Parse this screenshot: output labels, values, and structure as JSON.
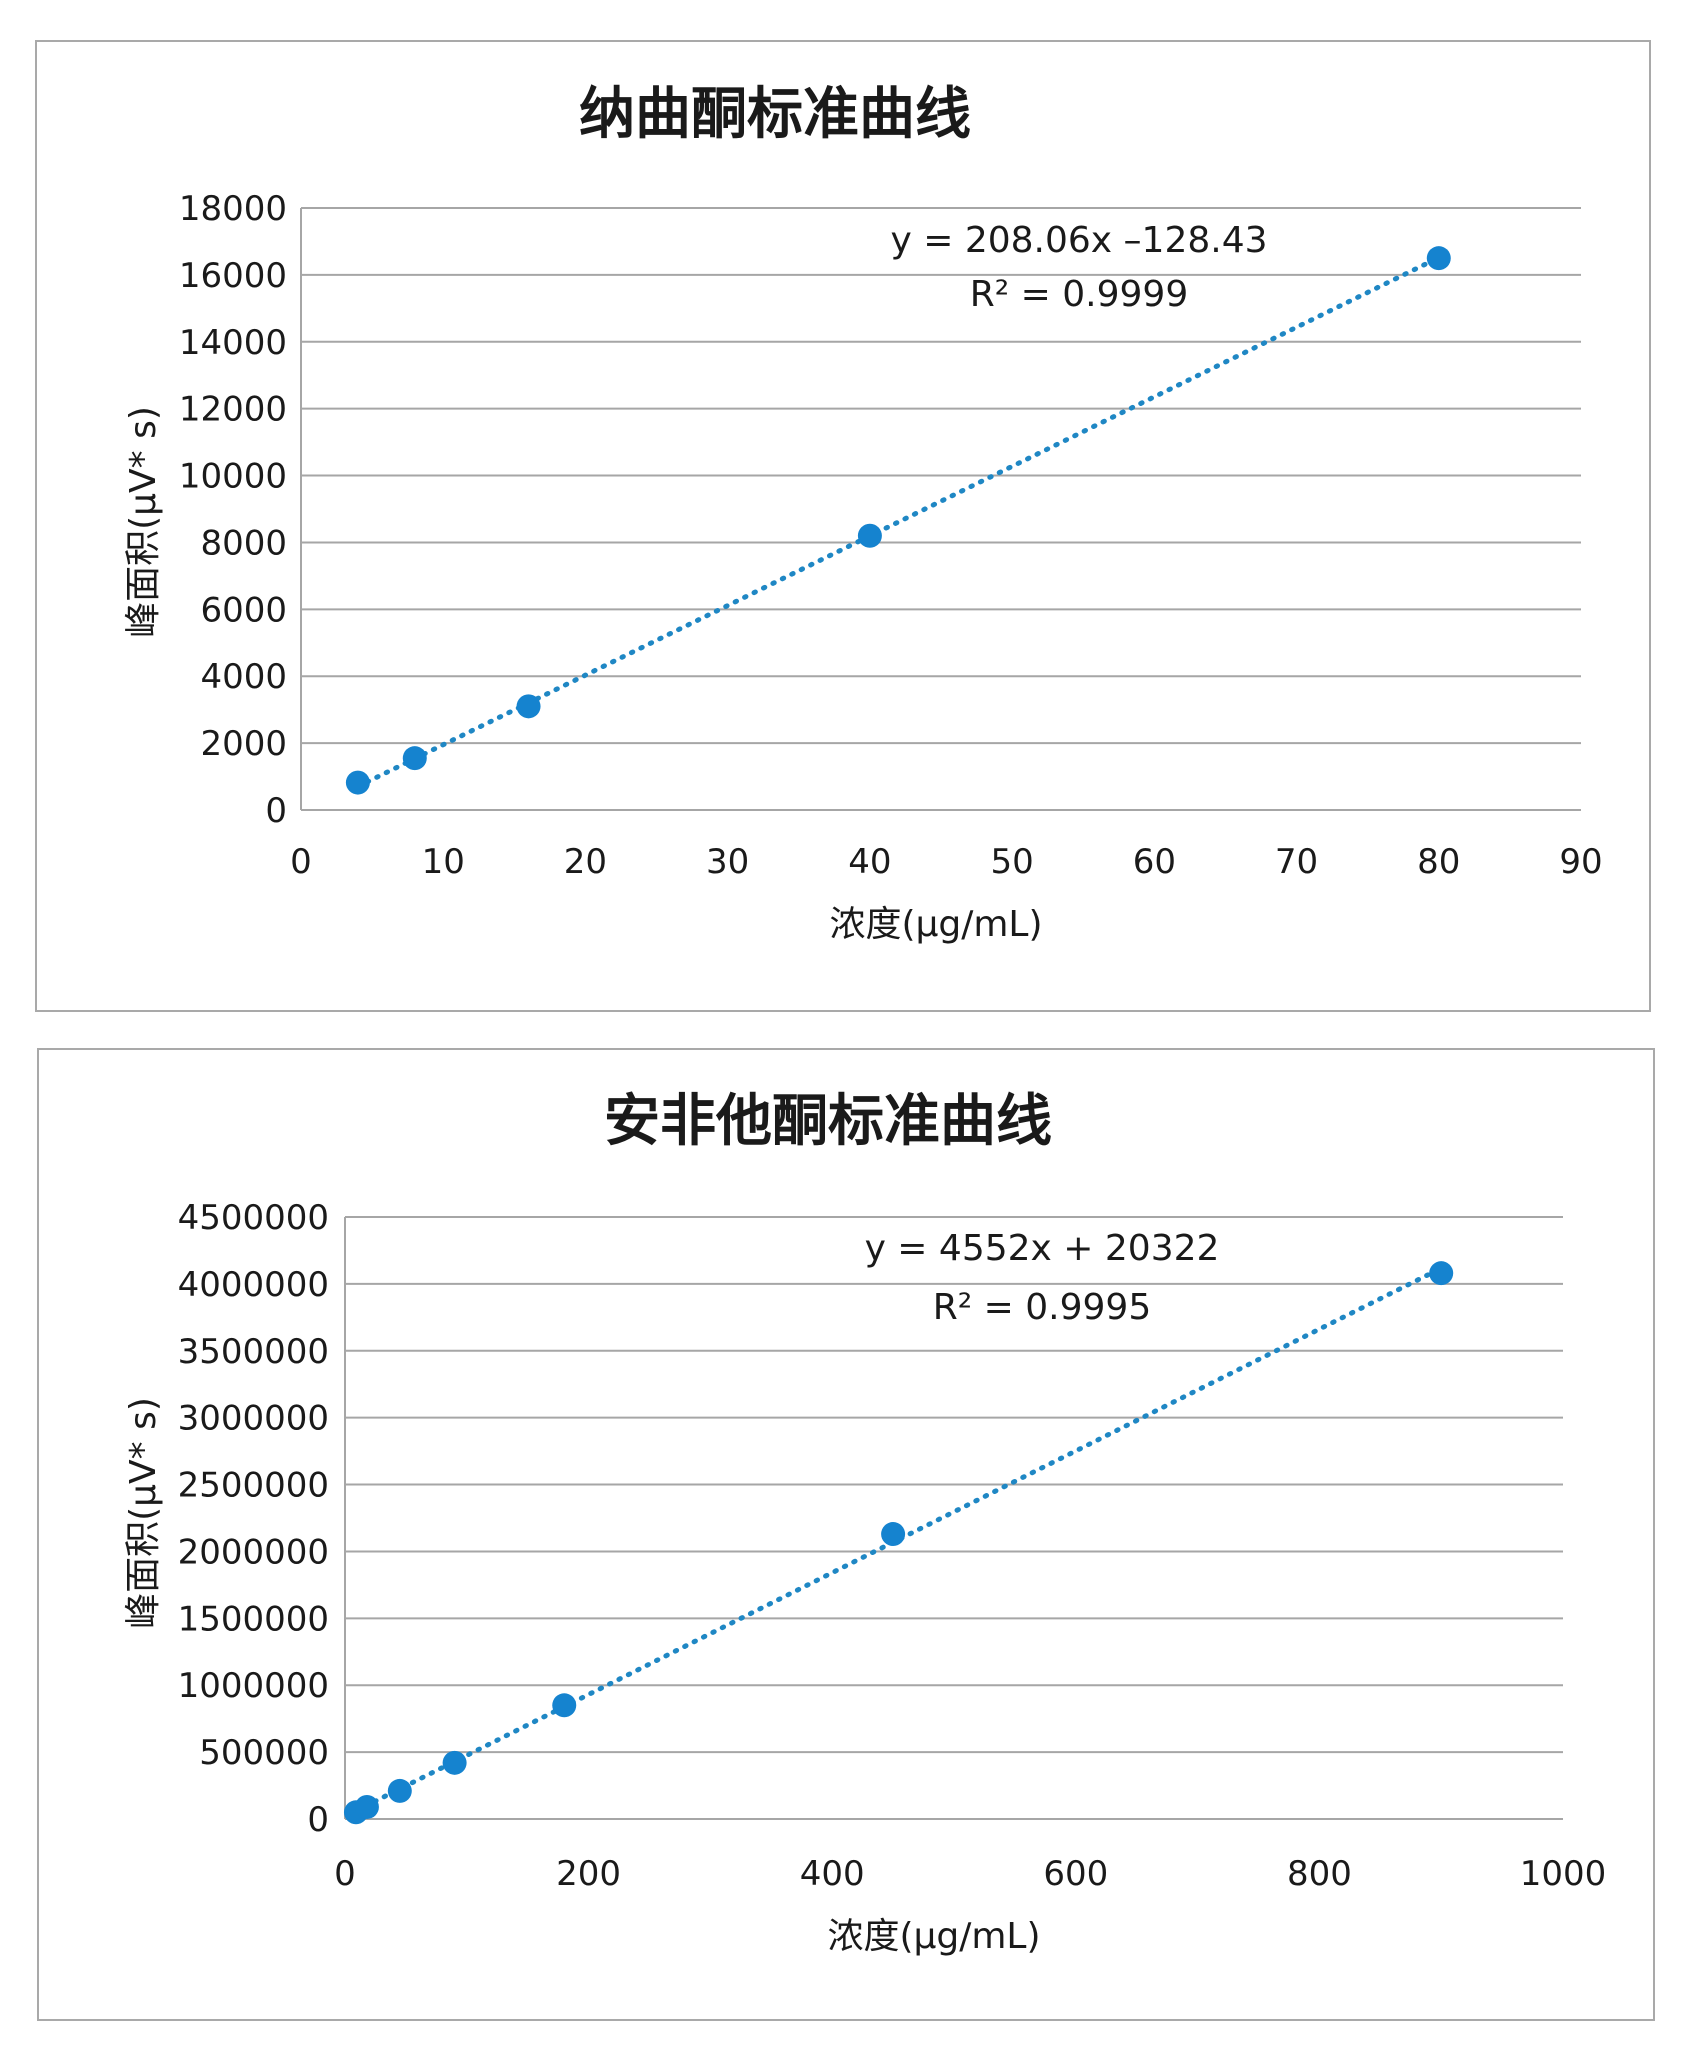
{
  "chart_data": [
    {
      "type": "scatter",
      "title": "纳曲酮标准曲线",
      "xlabel": "浓度(μg/mL)",
      "ylabel": "峰面积(μV* s)",
      "xlim": [
        0,
        90
      ],
      "ylim": [
        0,
        18000
      ],
      "x_ticks": [
        "0",
        "10",
        "20",
        "30",
        "40",
        "50",
        "60",
        "70",
        "80",
        "90"
      ],
      "y_ticks": [
        "0",
        "2000",
        "4000",
        "6000",
        "8000",
        "10000",
        "12000",
        "14000",
        "16000",
        "18000"
      ],
      "grid": "horizontal",
      "series": [
        {
          "x": [
            4,
            8,
            16,
            40,
            80
          ],
          "y": [
            820,
            1550,
            3100,
            8200,
            16500
          ]
        }
      ],
      "trendline": {
        "slope": 208.06,
        "intercept": -128.43,
        "style": "dotted",
        "x_range": [
          4,
          80
        ]
      },
      "equation": "y = 208.06x –128.43",
      "r2": "R² = 0.9999",
      "marker_color": "#1583cf",
      "line_color": "#1f87c4"
    },
    {
      "type": "scatter",
      "title": "安非他酮标准曲线",
      "xlabel": "浓度(μg/mL)",
      "ylabel": "峰面积(μV* s)",
      "xlim": [
        0,
        1000
      ],
      "ylim": [
        0,
        4500000
      ],
      "x_ticks": [
        "0",
        "200",
        "400",
        "600",
        "800",
        "1000"
      ],
      "y_ticks": [
        "0",
        "500000",
        "1000000",
        "1500000",
        "2000000",
        "2500000",
        "3000000",
        "3500000",
        "4000000",
        "4500000"
      ],
      "grid": "horizontal",
      "series": [
        {
          "x": [
            9,
            18,
            45,
            90,
            180,
            450,
            900
          ],
          "y": [
            50000,
            90000,
            210000,
            420000,
            850000,
            2130000,
            4080000
          ]
        }
      ],
      "trendline": {
        "slope": 4552,
        "intercept": 20322,
        "style": "dotted",
        "x_range": [
          9,
          900
        ]
      },
      "equation": "y = 4552x + 20322",
      "r2": "R² = 0.9995",
      "marker_color": "#1583cf",
      "line_color": "#1f87c4"
    }
  ]
}
